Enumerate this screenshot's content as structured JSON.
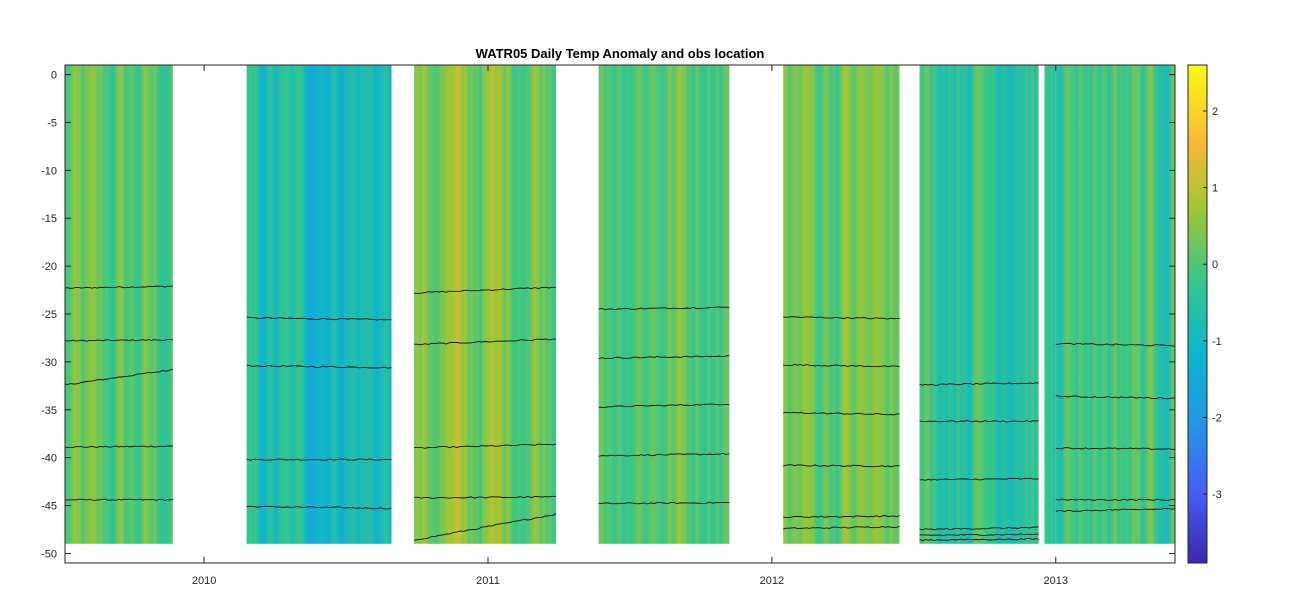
{
  "chart_data": {
    "type": "heatmap",
    "title": "WATR05 Daily Temp Anomaly and obs location",
    "xlabel": "",
    "ylabel": "",
    "xlim": [
      2009.51,
      2013.42
    ],
    "ylim": [
      -51,
      1
    ],
    "x_ticks": [
      2010,
      2011,
      2012,
      2013
    ],
    "x_tick_labels": [
      "2010",
      "2011",
      "2012",
      "2013"
    ],
    "y_ticks": [
      0,
      -5,
      -10,
      -15,
      -20,
      -25,
      -30,
      -35,
      -40,
      -45,
      -50
    ],
    "y_tick_labels": [
      "0",
      "-5",
      "-10",
      "-15",
      "-20",
      "-25",
      "-30",
      "-35",
      "-40",
      "-45",
      "-50"
    ],
    "colorbar": {
      "clim": [
        -3.9,
        2.6
      ],
      "ticks": [
        2,
        1,
        0,
        -1,
        -2,
        -3
      ],
      "tick_labels": [
        "2",
        "1",
        "0",
        "-1",
        "-2",
        "-3"
      ],
      "colormap": "parula"
    },
    "deployments": [
      {
        "x_start": 2009.51,
        "x_end": 2009.89,
        "bottom_depth": -49,
        "mean_anomaly": 0.0,
        "obs_depths": [
          -22.3,
          -27.8,
          -32.4,
          -38.9,
          -44.4
        ],
        "obs_end_depths": [
          -22.1,
          -27.7,
          -30.8,
          -38.8,
          -44.4
        ]
      },
      {
        "x_start": 2010.15,
        "x_end": 2010.66,
        "bottom_depth": -49,
        "mean_anomaly": -0.8,
        "obs_depths": [
          -25.4,
          -30.4,
          -40.2,
          -45.1
        ],
        "obs_end_depths": [
          -25.6,
          -30.6,
          -40.2,
          -45.3
        ]
      },
      {
        "x_start": 2010.74,
        "x_end": 2011.24,
        "bottom_depth": -49,
        "mean_anomaly": 0.4,
        "obs_depths": [
          -22.8,
          -28.2,
          -39.0,
          -44.2,
          -48.6
        ],
        "obs_end_depths": [
          -22.2,
          -27.6,
          -38.6,
          -44.1,
          -45.9
        ]
      },
      {
        "x_start": 2011.39,
        "x_end": 2011.85,
        "bottom_depth": -49,
        "mean_anomaly": 0.2,
        "obs_depths": [
          -24.5,
          -29.6,
          -34.7,
          -39.8,
          -44.8
        ],
        "obs_end_depths": [
          -24.3,
          -29.4,
          -34.4,
          -39.6,
          -44.7
        ]
      },
      {
        "x_start": 2012.04,
        "x_end": 2012.45,
        "bottom_depth": -49,
        "mean_anomaly": 0.3,
        "obs_depths": [
          -25.3,
          -30.3,
          -35.3,
          -40.8,
          -46.2,
          -47.4
        ],
        "obs_end_depths": [
          -25.5,
          -30.5,
          -35.5,
          -40.9,
          -46.1,
          -47.2
        ]
      },
      {
        "x_start": 2012.52,
        "x_end": 2012.94,
        "bottom_depth": -49,
        "mean_anomaly": -0.2,
        "obs_depths": [
          -32.4,
          -36.2,
          -42.3,
          -47.5,
          -48.1,
          -48.6
        ],
        "obs_end_depths": [
          -32.2,
          -36.2,
          -42.2,
          -47.3,
          -48.0,
          -48.5
        ]
      },
      {
        "x_start": 2012.96,
        "x_end": 2013.0,
        "bottom_depth": -49,
        "mean_anomaly": -0.3,
        "obs_depths": [],
        "obs_end_depths": []
      },
      {
        "x_start": 2013.0,
        "x_end": 2013.42,
        "bottom_depth": -49,
        "mean_anomaly": 0.0,
        "obs_depths": [
          -28.1,
          -33.6,
          -39.0,
          -44.4,
          -45.6
        ],
        "obs_end_depths": [
          -28.3,
          -33.8,
          -39.1,
          -44.4,
          -45.3
        ]
      }
    ]
  }
}
